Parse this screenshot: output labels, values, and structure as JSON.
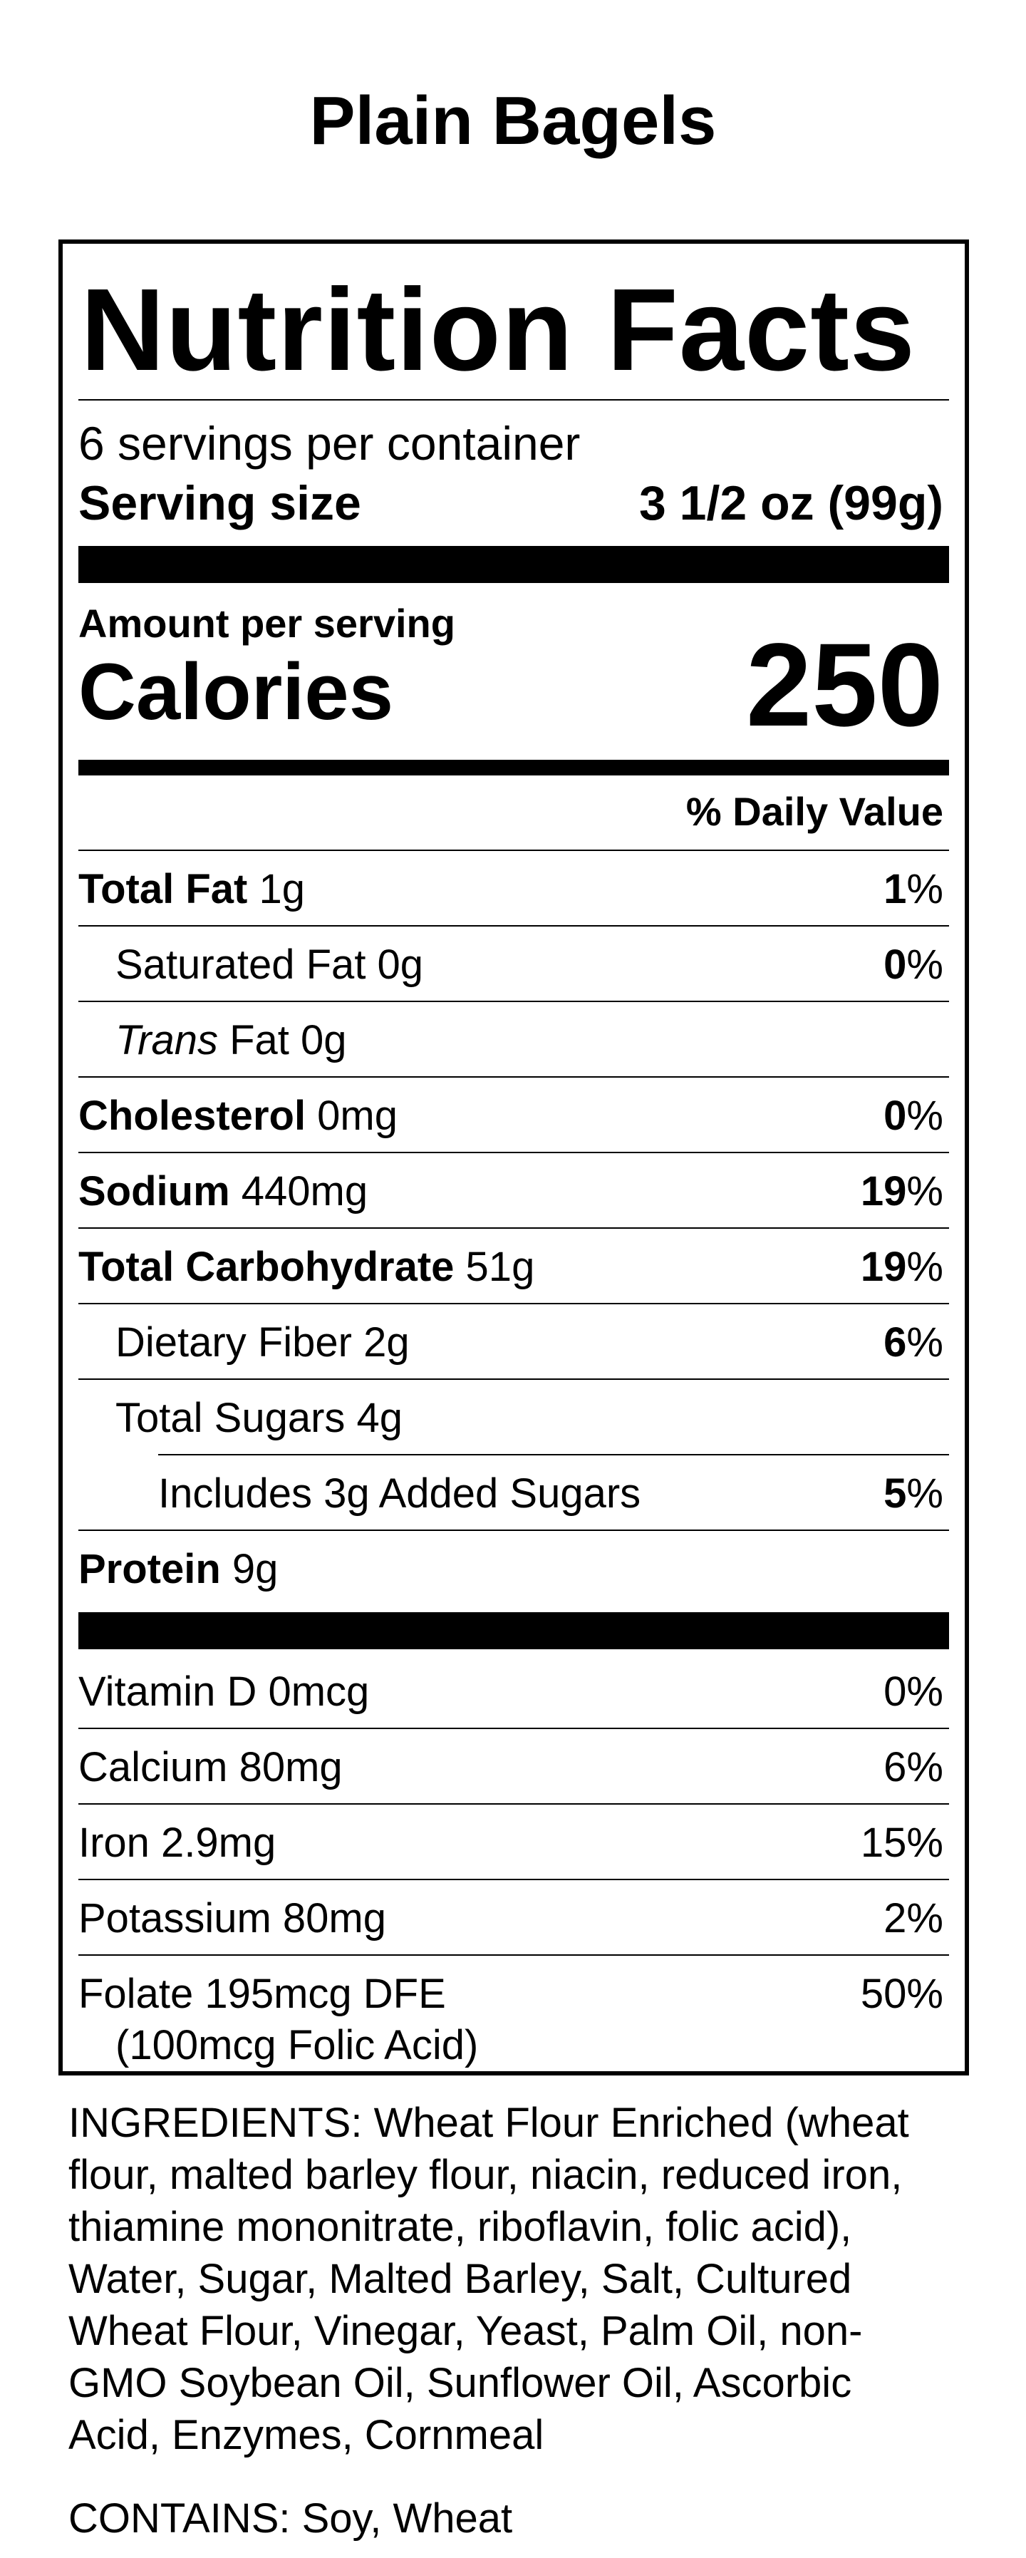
{
  "product_title": "Plain Bagels",
  "heading": "Nutrition Facts",
  "servings_per_container": "6 servings per container",
  "serving_size_label": "Serving size",
  "serving_size_value": "3 1/2 oz (99g)",
  "amount_per_serving": "Amount per serving",
  "calories_label": "Calories",
  "calories_value": "250",
  "daily_value_header": "% Daily Value",
  "nutrients": [
    {
      "name": "Total Fat",
      "amount": " 1g",
      "pct_num": "1",
      "pct_sign": "%"
    },
    {
      "name": "Saturated Fat 0g",
      "amount": "",
      "pct_num": "0",
      "pct_sign": "%"
    },
    {
      "name_italic": "Trans",
      "name": " Fat 0g"
    },
    {
      "name": "Cholesterol",
      "amount": " 0mg",
      "pct_num": "0",
      "pct_sign": "%"
    },
    {
      "name": "Sodium",
      "amount": " 440mg",
      "pct_num": "19",
      "pct_sign": "%"
    },
    {
      "name": "Total Carbohydrate",
      "amount": " 51g",
      "pct_num": "19",
      "pct_sign": "%"
    },
    {
      "name": "Dietary Fiber 2g",
      "amount": "",
      "pct_num": "6",
      "pct_sign": "%"
    },
    {
      "name": "Total Sugars 4g"
    },
    {
      "name": "Includes 3g Added Sugars",
      "pct_num": "5",
      "pct_sign": "%"
    },
    {
      "name": "Protein",
      "amount": " 9g"
    }
  ],
  "vitamins": [
    {
      "name": "Vitamin D 0mcg",
      "pct": "0%"
    },
    {
      "name": "Calcium 80mg",
      "pct": "6%"
    },
    {
      "name": "Iron 2.9mg",
      "pct": "15%"
    },
    {
      "name": "Potassium 80mg",
      "pct": "2%"
    },
    {
      "name": "Folate 195mcg DFE",
      "sub": "(100mcg Folic Acid)",
      "pct": "50%"
    }
  ],
  "ingredients_lines": [
    "INGREDIENTS: Wheat Flour Enriched (wheat",
    "flour, malted barley flour, niacin, reduced iron,",
    "thiamine mononitrate, riboflavin, folic acid),",
    "Water, Sugar, Malted Barley, Salt, Cultured",
    "Wheat Flour, Vinegar, Yeast, Palm Oil, non-",
    "GMO Soybean Oil, Sunflower Oil, Ascorbic",
    "Acid, Enzymes, Cornmeal"
  ],
  "contains": "CONTAINS: Soy, Wheat"
}
